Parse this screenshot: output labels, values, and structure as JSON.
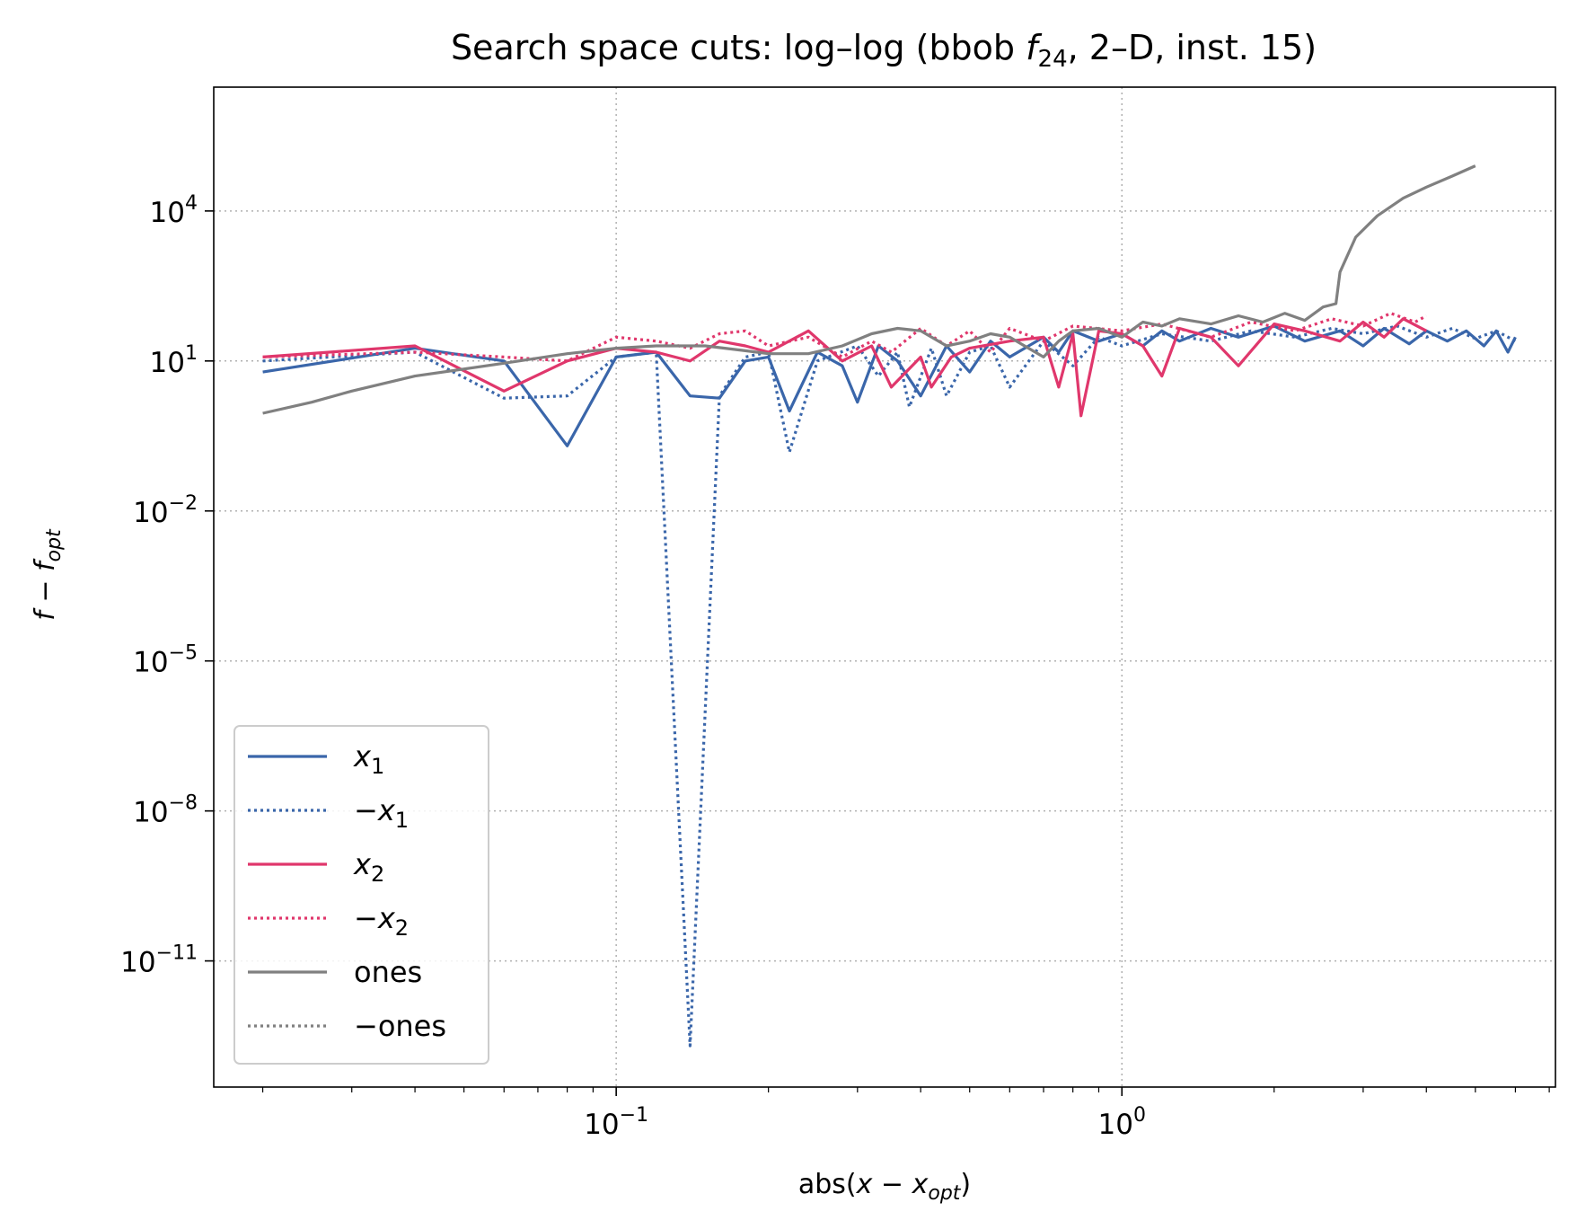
{
  "chart_data": {
    "type": "line",
    "title_main": "Search space cuts: log–log (bbob ",
    "title_fn": "f",
    "title_fn_sub": "24",
    "title_rest": ", 2–D, inst. 15)",
    "xlabel": "abs(x − x_opt)",
    "ylabel": "f − f_opt",
    "xscale": "log",
    "yscale": "log",
    "xlim": [
      0.016,
      7.2
    ],
    "ylim": [
      3e-14,
      3000000.0
    ],
    "grid": true,
    "legend_position": "lower left",
    "xticks": [
      {
        "value": 0.1,
        "base": "10",
        "exp": "−1"
      },
      {
        "value": 1,
        "base": "10",
        "exp": "0"
      }
    ],
    "yticks": [
      {
        "value": 10000.0,
        "base": "10",
        "exp": "4"
      },
      {
        "value": 10,
        "base": "10",
        "exp": "1"
      },
      {
        "value": 0.01,
        "base": "10",
        "exp": "−2"
      },
      {
        "value": 1e-05,
        "base": "10",
        "exp": "−5"
      },
      {
        "value": 1e-08,
        "base": "10",
        "exp": "−8"
      },
      {
        "value": 1e-11,
        "base": "10",
        "exp": "−11"
      }
    ],
    "series": [
      {
        "label": "x₁",
        "label_main": "x",
        "label_sub": "1",
        "label_prefix": "",
        "color": "#3a66aa",
        "dash": "solid",
        "points": [
          [
            0.02,
            6
          ],
          [
            0.04,
            18
          ],
          [
            0.06,
            10
          ],
          [
            0.08,
            0.2
          ],
          [
            0.1,
            12
          ],
          [
            0.12,
            15
          ],
          [
            0.14,
            2
          ],
          [
            0.16,
            1.8
          ],
          [
            0.18,
            10
          ],
          [
            0.2,
            12
          ],
          [
            0.22,
            1
          ],
          [
            0.25,
            15
          ],
          [
            0.28,
            8
          ],
          [
            0.3,
            1.5
          ],
          [
            0.33,
            20
          ],
          [
            0.36,
            10
          ],
          [
            0.4,
            2
          ],
          [
            0.45,
            20
          ],
          [
            0.5,
            6
          ],
          [
            0.55,
            25
          ],
          [
            0.6,
            12
          ],
          [
            0.7,
            30
          ],
          [
            0.75,
            15
          ],
          [
            0.8,
            40
          ],
          [
            0.9,
            25
          ],
          [
            1.0,
            35
          ],
          [
            1.1,
            20
          ],
          [
            1.2,
            40
          ],
          [
            1.3,
            25
          ],
          [
            1.5,
            45
          ],
          [
            1.7,
            30
          ],
          [
            2.0,
            50
          ],
          [
            2.3,
            25
          ],
          [
            2.7,
            40
          ],
          [
            3.0,
            20
          ],
          [
            3.3,
            45
          ],
          [
            3.7,
            22
          ],
          [
            4.0,
            40
          ],
          [
            4.4,
            25
          ],
          [
            4.8,
            40
          ],
          [
            5.2,
            20
          ],
          [
            5.5,
            40
          ],
          [
            5.8,
            15
          ],
          [
            6.0,
            30
          ]
        ]
      },
      {
        "label": "−x₁",
        "label_main": "x",
        "label_sub": "1",
        "label_prefix": "−",
        "color": "#3a66aa",
        "dash": "dotted",
        "points": [
          [
            0.02,
            10
          ],
          [
            0.04,
            15
          ],
          [
            0.06,
            1.8
          ],
          [
            0.08,
            2
          ],
          [
            0.1,
            12
          ],
          [
            0.12,
            15
          ],
          [
            0.14,
            2e-13
          ],
          [
            0.16,
            2
          ],
          [
            0.18,
            12
          ],
          [
            0.2,
            15
          ],
          [
            0.22,
            0.15
          ],
          [
            0.25,
            10
          ],
          [
            0.3,
            20
          ],
          [
            0.33,
            5
          ],
          [
            0.36,
            15
          ],
          [
            0.38,
            1.2
          ],
          [
            0.42,
            18
          ],
          [
            0.45,
            2
          ],
          [
            0.5,
            15
          ],
          [
            0.55,
            20
          ],
          [
            0.6,
            3
          ],
          [
            0.7,
            25
          ],
          [
            0.8,
            8
          ],
          [
            0.9,
            30
          ],
          [
            1.0,
            20
          ],
          [
            1.2,
            35
          ],
          [
            1.5,
            25
          ],
          [
            1.8,
            40
          ],
          [
            2.2,
            30
          ],
          [
            2.6,
            45
          ],
          [
            3.0,
            35
          ],
          [
            3.5,
            50
          ],
          [
            4.0,
            30
          ],
          [
            4.5,
            45
          ],
          [
            5.0,
            28
          ],
          [
            5.5,
            40
          ],
          [
            6.0,
            25
          ]
        ]
      },
      {
        "label": "x₂",
        "label_main": "x",
        "label_sub": "2",
        "label_prefix": "",
        "color": "#e0376c",
        "dash": "solid",
        "points": [
          [
            0.02,
            12
          ],
          [
            0.04,
            20
          ],
          [
            0.06,
            2.5
          ],
          [
            0.08,
            10
          ],
          [
            0.1,
            18
          ],
          [
            0.12,
            15
          ],
          [
            0.14,
            10
          ],
          [
            0.16,
            25
          ],
          [
            0.18,
            20
          ],
          [
            0.2,
            15
          ],
          [
            0.24,
            40
          ],
          [
            0.28,
            10
          ],
          [
            0.32,
            20
          ],
          [
            0.35,
            3
          ],
          [
            0.4,
            12
          ],
          [
            0.42,
            3
          ],
          [
            0.46,
            12
          ],
          [
            0.5,
            18
          ],
          [
            0.6,
            25
          ],
          [
            0.7,
            30
          ],
          [
            0.75,
            3
          ],
          [
            0.8,
            35
          ],
          [
            0.83,
            0.8
          ],
          [
            0.9,
            40
          ],
          [
            1.0,
            35
          ],
          [
            1.1,
            20
          ],
          [
            1.2,
            5
          ],
          [
            1.3,
            45
          ],
          [
            1.5,
            30
          ],
          [
            1.7,
            8
          ],
          [
            2.0,
            55
          ],
          [
            2.3,
            40
          ],
          [
            2.7,
            25
          ],
          [
            3.0,
            60
          ],
          [
            3.3,
            30
          ],
          [
            3.6,
            70
          ],
          [
            4.0,
            40
          ]
        ]
      },
      {
        "label": "−x₂",
        "label_main": "x",
        "label_sub": "2",
        "label_prefix": "−",
        "color": "#e0376c",
        "dash": "dotted",
        "points": [
          [
            0.02,
            12
          ],
          [
            0.04,
            15
          ],
          [
            0.06,
            12
          ],
          [
            0.08,
            10
          ],
          [
            0.1,
            30
          ],
          [
            0.12,
            25
          ],
          [
            0.14,
            18
          ],
          [
            0.16,
            35
          ],
          [
            0.18,
            40
          ],
          [
            0.2,
            20
          ],
          [
            0.24,
            30
          ],
          [
            0.28,
            12
          ],
          [
            0.32,
            25
          ],
          [
            0.35,
            15
          ],
          [
            0.4,
            45
          ],
          [
            0.45,
            20
          ],
          [
            0.5,
            40
          ],
          [
            0.55,
            15
          ],
          [
            0.6,
            45
          ],
          [
            0.7,
            25
          ],
          [
            0.8,
            50
          ],
          [
            1.0,
            40
          ],
          [
            1.2,
            55
          ],
          [
            1.5,
            30
          ],
          [
            1.8,
            60
          ],
          [
            2.2,
            40
          ],
          [
            2.6,
            70
          ],
          [
            3.0,
            50
          ],
          [
            3.4,
            90
          ],
          [
            3.8,
            60
          ],
          [
            4.0,
            80
          ]
        ]
      },
      {
        "label": "ones",
        "label_main": "ones",
        "label_sub": "",
        "label_prefix": "",
        "color": "#808080",
        "dash": "solid",
        "points": [
          [
            0.02,
            0.9
          ],
          [
            0.025,
            1.5
          ],
          [
            0.03,
            2.5
          ],
          [
            0.04,
            5
          ],
          [
            0.06,
            9
          ],
          [
            0.08,
            14
          ],
          [
            0.1,
            18
          ],
          [
            0.12,
            20
          ],
          [
            0.15,
            20
          ],
          [
            0.18,
            16
          ],
          [
            0.2,
            14
          ],
          [
            0.24,
            14
          ],
          [
            0.28,
            20
          ],
          [
            0.32,
            35
          ],
          [
            0.36,
            45
          ],
          [
            0.4,
            40
          ],
          [
            0.45,
            20
          ],
          [
            0.5,
            25
          ],
          [
            0.55,
            35
          ],
          [
            0.6,
            30
          ],
          [
            0.7,
            12
          ],
          [
            0.75,
            25
          ],
          [
            0.8,
            40
          ],
          [
            0.9,
            45
          ],
          [
            1.0,
            30
          ],
          [
            1.1,
            60
          ],
          [
            1.2,
            50
          ],
          [
            1.3,
            70
          ],
          [
            1.5,
            55
          ],
          [
            1.7,
            80
          ],
          [
            1.9,
            60
          ],
          [
            2.1,
            90
          ],
          [
            2.3,
            65
          ],
          [
            2.5,
            120
          ],
          [
            2.65,
            140
          ],
          [
            2.7,
            600
          ],
          [
            2.9,
            3000
          ],
          [
            3.2,
            8000
          ],
          [
            3.6,
            18000
          ],
          [
            4.0,
            30000
          ],
          [
            4.5,
            50000
          ],
          [
            5.0,
            80000
          ]
        ]
      },
      {
        "label": "−ones",
        "label_main": "ones",
        "label_sub": "",
        "label_prefix": "−",
        "color": "#808080",
        "dash": "dotted",
        "points": []
      }
    ]
  }
}
